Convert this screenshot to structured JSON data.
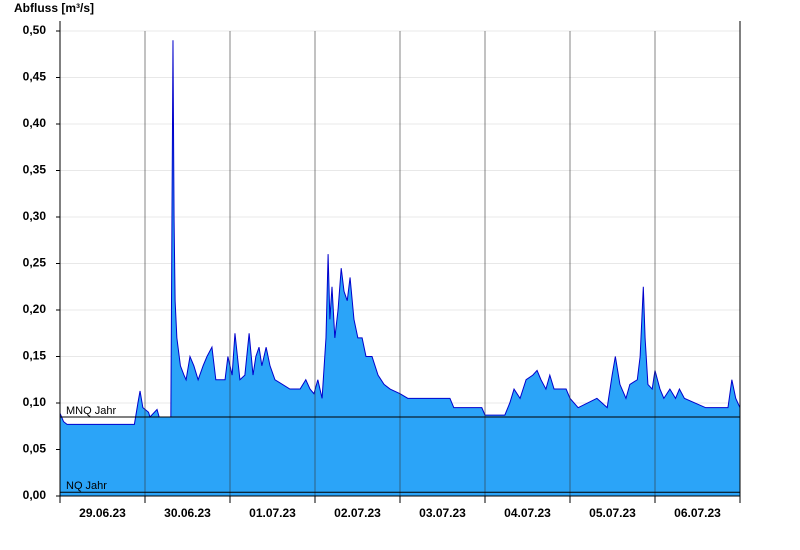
{
  "chart_data": {
    "type": "area",
    "title": "Abfluss [m³/s]",
    "categories": [
      "29.06.23",
      "30.06.23",
      "01.07.23",
      "02.07.23",
      "03.07.23",
      "04.07.23",
      "05.07.23",
      "06.07.23"
    ],
    "xlim": [
      0,
      192
    ],
    "xticks": [
      0,
      24,
      48,
      72,
      96,
      120,
      144,
      168,
      192
    ],
    "ylim": [
      0,
      0.5
    ],
    "yticks": [
      {
        "value": 0,
        "label": "0,00"
      },
      {
        "value": 0.05,
        "label": "0,05"
      },
      {
        "value": 0.1,
        "label": "0,10"
      },
      {
        "value": 0.15,
        "label": "0,15"
      },
      {
        "value": 0.2,
        "label": "0,20"
      },
      {
        "value": 0.25,
        "label": "0,25"
      },
      {
        "value": 0.3,
        "label": "0,30"
      },
      {
        "value": 0.35,
        "label": "0,35"
      },
      {
        "value": 0.4,
        "label": "0,40"
      },
      {
        "value": 0.45,
        "label": "0,45"
      },
      {
        "value": 0.5,
        "label": "0,50"
      }
    ],
    "grid": true,
    "x": [
      0,
      1,
      2,
      21,
      22,
      22.6,
      23.4,
      25,
      25.4,
      27.4,
      28,
      31.3,
      31.6,
      31.9,
      32.2,
      32.5,
      33,
      34,
      35,
      35.6,
      36.7,
      37.8,
      39,
      40.4,
      41.5,
      42.9,
      44,
      46.6,
      47.4,
      48.6,
      49.4,
      50.8,
      52.2,
      53.4,
      54.5,
      55.3,
      56.2,
      57,
      58.2,
      59.3,
      60.7,
      64.9,
      67.8,
      69.4,
      70.6,
      71.7,
      72.8,
      74,
      75.1,
      75.7,
      76.2,
      76.8,
      77.6,
      78.5,
      79.4,
      80.2,
      81.1,
      81.9,
      83,
      84.1,
      85.3,
      86.4,
      88.1,
      89.8,
      91.5,
      93.2,
      96,
      98.2,
      110.1,
      111.2,
      119.1,
      120,
      125.6,
      127,
      128.2,
      129.9,
      131.6,
      133.5,
      134.7,
      135.8,
      137.2,
      138.3,
      139.5,
      142.9,
      144,
      146.3,
      151.6,
      154.5,
      155.9,
      156.8,
      158.1,
      159.8,
      160.9,
      163,
      163.8,
      164.7,
      165.2,
      166,
      167.2,
      168,
      169.4,
      170.5,
      172.2,
      173.8,
      174.9,
      176.3,
      182.3,
      188.6,
      189.7,
      190.8,
      192
    ],
    "series": [
      {
        "name": "Abfluss",
        "color": "#2ba4f8",
        "line_color": "#0000cc",
        "values": [
          0.089,
          0.08,
          0.077,
          0.077,
          0.1,
          0.113,
          0.095,
          0.09,
          0.085,
          0.093,
          0.085,
          0.085,
          0.29,
          0.49,
          0.3,
          0.21,
          0.17,
          0.14,
          0.13,
          0.125,
          0.15,
          0.14,
          0.125,
          0.14,
          0.15,
          0.16,
          0.125,
          0.125,
          0.15,
          0.13,
          0.175,
          0.125,
          0.13,
          0.175,
          0.13,
          0.15,
          0.16,
          0.14,
          0.16,
          0.14,
          0.125,
          0.115,
          0.115,
          0.125,
          0.115,
          0.11,
          0.125,
          0.105,
          0.17,
          0.26,
          0.19,
          0.225,
          0.17,
          0.2,
          0.245,
          0.22,
          0.21,
          0.235,
          0.19,
          0.17,
          0.17,
          0.15,
          0.15,
          0.13,
          0.12,
          0.115,
          0.11,
          0.105,
          0.105,
          0.095,
          0.095,
          0.087,
          0.087,
          0.1,
          0.115,
          0.105,
          0.125,
          0.13,
          0.135,
          0.125,
          0.115,
          0.13,
          0.115,
          0.115,
          0.105,
          0.095,
          0.105,
          0.095,
          0.13,
          0.15,
          0.12,
          0.105,
          0.12,
          0.125,
          0.15,
          0.225,
          0.17,
          0.12,
          0.115,
          0.135,
          0.115,
          0.105,
          0.115,
          0.105,
          0.115,
          0.105,
          0.095,
          0.095,
          0.125,
          0.105,
          0.095
        ]
      }
    ],
    "reference_lines": [
      {
        "label": "MNQ Jahr",
        "value": 0.085
      },
      {
        "label": "NQ Jahr",
        "value": 0.004
      }
    ]
  }
}
